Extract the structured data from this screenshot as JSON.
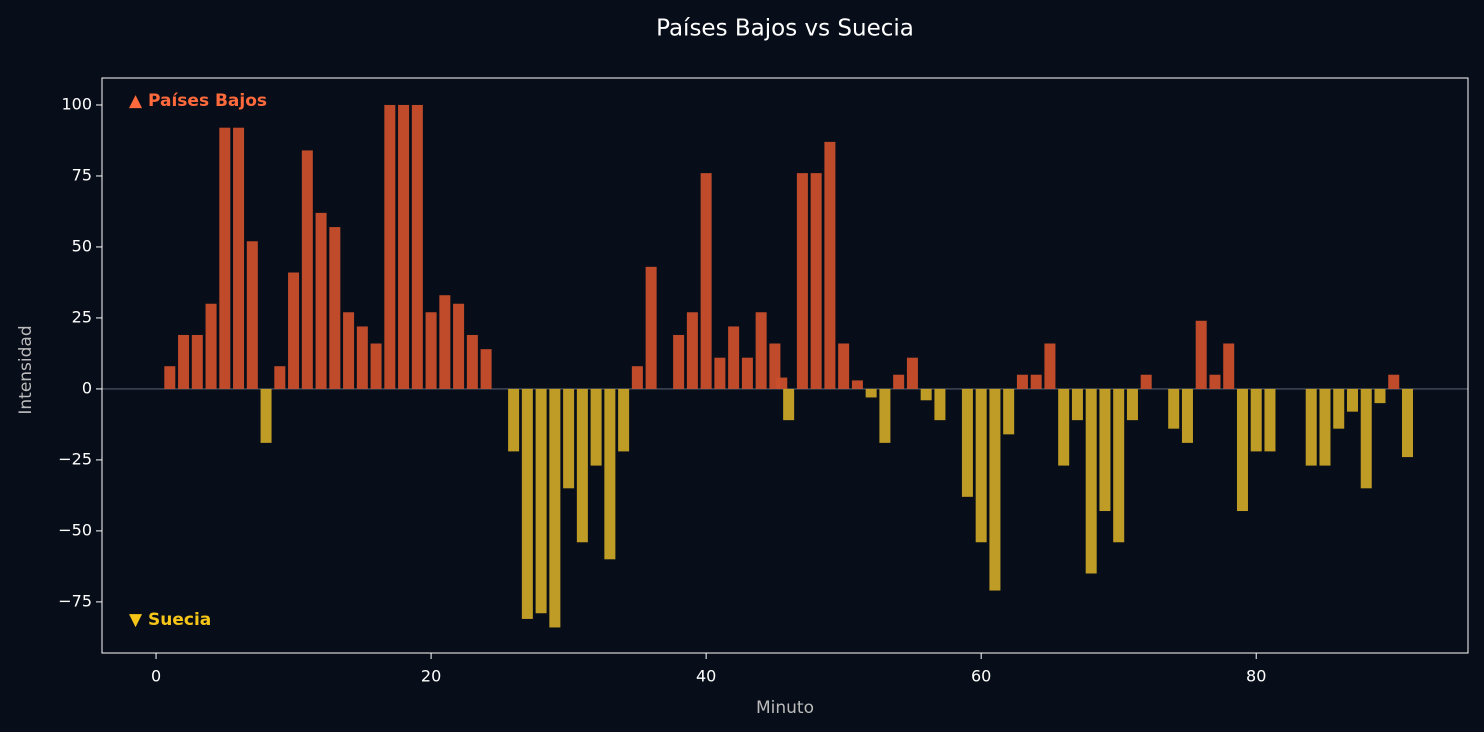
{
  "chart_data": {
    "type": "bar",
    "title": "Países Bajos vs Suecia",
    "x_label": "Minuto",
    "y_label": "Intensidad",
    "x": [
      1,
      2,
      3,
      4,
      5,
      6,
      7,
      8,
      9,
      10,
      11,
      12,
      13,
      14,
      15,
      16,
      17,
      18,
      19,
      20,
      21,
      22,
      23,
      24,
      26,
      27,
      28,
      29,
      30,
      31,
      32,
      33,
      34,
      35,
      36,
      38,
      39,
      40,
      41,
      42,
      43,
      44,
      45,
      45.5,
      46,
      47,
      48,
      49,
      50,
      51,
      52,
      53,
      54,
      55,
      56,
      57,
      59,
      60,
      61,
      62,
      63,
      64,
      65,
      66,
      67,
      68,
      69,
      70,
      71,
      72,
      74,
      75,
      76,
      77,
      78,
      79,
      80,
      81,
      84,
      85,
      86,
      87,
      88,
      89,
      90,
      91
    ],
    "values": [
      8,
      19,
      19,
      30,
      92,
      92,
      52,
      -19,
      8,
      41,
      84,
      62,
      57,
      27,
      22,
      16,
      100,
      100,
      100,
      27,
      33,
      30,
      19,
      14,
      -22,
      -81,
      -79,
      -84,
      -35,
      -54,
      -27,
      -60,
      -22,
      8,
      43,
      19,
      27,
      76,
      11,
      22,
      11,
      27,
      16,
      4,
      -11,
      76,
      76,
      87,
      16,
      3,
      -3,
      -19,
      5,
      11,
      -4,
      -11,
      -38,
      -54,
      -71,
      -16,
      5,
      5,
      16,
      -27,
      -11,
      -65,
      -43,
      -54,
      -11,
      5,
      -14,
      -19,
      24,
      5,
      16,
      -43,
      -22,
      -22,
      -27,
      -27,
      -14,
      -8,
      -35,
      -5,
      5,
      -24
    ],
    "positive_color": "#c94f2c",
    "negative_color": "#c9a427",
    "annotations": [
      {
        "text": "▲ Países Bajos",
        "color": "#ff6a3d",
        "position": "top"
      },
      {
        "text": "▼ Suecia",
        "color": "#f5c518",
        "position": "bottom"
      }
    ],
    "xlim": [
      -3.93,
      95.4
    ],
    "ylim": [
      -93,
      109.5
    ],
    "xticks": [
      0,
      20,
      40,
      60,
      80
    ],
    "yticks": [
      {
        "value": -75,
        "label": "−75"
      },
      {
        "value": -50,
        "label": "−50"
      },
      {
        "value": -25,
        "label": "−25"
      },
      0,
      25,
      50,
      75,
      100
    ],
    "grid": false
  }
}
